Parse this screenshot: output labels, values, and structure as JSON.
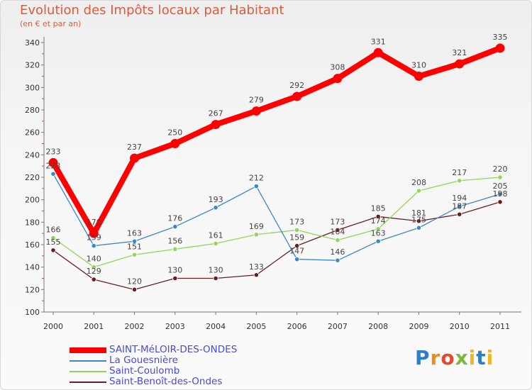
{
  "title": "Evolution des Impôts locaux par Habitant",
  "subtitle": "(en € et par an)",
  "logo": {
    "text": "Proxiti"
  },
  "chart_data": {
    "type": "line",
    "title": "Evolution des Impôts locaux par Habitant",
    "subtitle": "(en € et par an)",
    "xlabel": "",
    "ylabel": "",
    "categories": [
      "2000",
      "2001",
      "2002",
      "2003",
      "2004",
      "2005",
      "2006",
      "2007",
      "2008",
      "2009",
      "2010",
      "2011"
    ],
    "ylim": [
      100,
      340
    ],
    "yticks": [
      100,
      120,
      140,
      160,
      180,
      200,
      220,
      240,
      260,
      280,
      300,
      320,
      340
    ],
    "grid": false,
    "legend_position": "bottom-left",
    "series": [
      {
        "name": "SAINT-MéLOIR-DES-ONDES",
        "color": "#ff0000",
        "values": [
          233,
          170,
          237,
          250,
          267,
          279,
          292,
          308,
          331,
          310,
          321,
          335
        ],
        "labels": true
      },
      {
        "name": "La Gouesnière",
        "color": "#3d87c8",
        "values": [
          223,
          159,
          163,
          176,
          193,
          212,
          147,
          146,
          163,
          175,
          194,
          205
        ],
        "labels": true
      },
      {
        "name": "Saint-Coulomb",
        "color": "#8fd65a",
        "values": [
          166,
          140,
          151,
          156,
          161,
          169,
          173,
          164,
          174,
          208,
          217,
          220
        ],
        "labels": true
      },
      {
        "name": "Saint-Benoît-des-Ondes",
        "color": "#6b1e22",
        "values": [
          155,
          129,
          120,
          130,
          130,
          133,
          159,
          173,
          185,
          181,
          187,
          198
        ],
        "labels": true
      }
    ]
  }
}
